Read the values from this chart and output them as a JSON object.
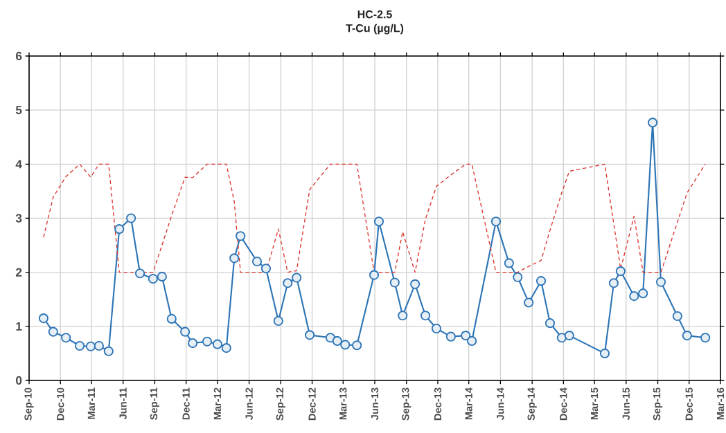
{
  "chart_data": {
    "type": "line",
    "title": "HC-2.5",
    "subtitle": "T-Cu (µg/L)",
    "x": [
      "2010-10-13",
      "2010-11-10",
      "2010-12-17",
      "2011-01-26",
      "2011-02-27",
      "2011-03-23",
      "2011-04-20",
      "2011-05-21",
      "2011-06-24",
      "2011-07-20",
      "2011-08-27",
      "2011-09-22",
      "2011-10-20",
      "2011-11-28",
      "2011-12-20",
      "2012-01-31",
      "2012-03-01",
      "2012-03-27",
      "2012-04-19",
      "2012-05-07",
      "2012-06-24",
      "2012-07-20",
      "2012-08-25",
      "2012-09-21",
      "2012-10-17",
      "2012-11-24",
      "2013-01-23",
      "2013-02-12",
      "2013-03-07",
      "2013-04-10",
      "2013-05-30",
      "2013-06-13",
      "2013-07-29",
      "2013-08-21",
      "2013-09-26",
      "2013-10-26",
      "2013-11-27",
      "2014-01-08",
      "2014-02-20",
      "2014-03-10",
      "2014-05-19",
      "2014-06-26",
      "2014-07-21",
      "2014-08-22",
      "2014-09-27",
      "2014-10-23",
      "2014-11-26",
      "2014-12-18",
      "2015-03-31",
      "2015-04-26",
      "2015-05-16",
      "2015-06-24",
      "2015-07-20",
      "2015-08-17",
      "2015-09-10",
      "2015-10-28",
      "2015-11-25",
      "2016-01-17"
    ],
    "series": [
      {
        "color": "#2e75b6",
        "marker": "circle",
        "line_style": "solid",
        "values": [
          1.15,
          0.9,
          0.79,
          0.64,
          0.63,
          0.64,
          0.54,
          2.8,
          3.0,
          1.98,
          1.88,
          1.92,
          1.14,
          0.9,
          0.69,
          0.72,
          0.67,
          0.6,
          2.26,
          2.67,
          2.2,
          2.07,
          1.1,
          1.8,
          1.9,
          0.84,
          0.79,
          0.73,
          0.66,
          0.65,
          1.95,
          2.94,
          1.81,
          1.2,
          1.78,
          1.2,
          0.96,
          0.81,
          0.83,
          0.73,
          2.94,
          2.17,
          1.91,
          1.44,
          1.84,
          1.06,
          0.79,
          0.83,
          0.5,
          1.8,
          2.02,
          1.56,
          1.61,
          4.77,
          1.82,
          1.19,
          0.83,
          0.79
        ]
      },
      {
        "color": "#d9312b",
        "marker": "none",
        "line_style": "dashed",
        "values": [
          2.65,
          3.39,
          3.77,
          4.0,
          3.76,
          4.0,
          4.0,
          2.0,
          2.0,
          2.0,
          2.0,
          2.5,
          3.05,
          3.76,
          3.75,
          4.0,
          4.0,
          4.0,
          3.3,
          2.0,
          2.0,
          2.0,
          2.8,
          2.0,
          2.03,
          3.53,
          4.0,
          4.0,
          4.0,
          4.0,
          2.0,
          2.0,
          2.0,
          2.75,
          2.0,
          2.98,
          3.59,
          3.8,
          4.0,
          4.0,
          2.0,
          2.0,
          2.0,
          2.11,
          2.22,
          2.78,
          3.47,
          3.87,
          4.0,
          2.9,
          2.06,
          3.04,
          2.0,
          2.0,
          2.0,
          2.93,
          3.47,
          4.0
        ]
      }
    ],
    "xlim": [
      "2010-09-01",
      "2016-03-01"
    ],
    "xticks": [
      {
        "value": "2010-09-01",
        "label": "Sep-10"
      },
      {
        "value": "2010-12-01",
        "label": "Dec-10"
      },
      {
        "value": "2011-03-01",
        "label": "Mar-11"
      },
      {
        "value": "2011-06-01",
        "label": "Jun-11"
      },
      {
        "value": "2011-09-01",
        "label": "Sep-11"
      },
      {
        "value": "2011-12-01",
        "label": "Dec-11"
      },
      {
        "value": "2012-03-01",
        "label": "Mar-12"
      },
      {
        "value": "2012-06-01",
        "label": "Jun-12"
      },
      {
        "value": "2012-09-01",
        "label": "Sep-12"
      },
      {
        "value": "2012-12-01",
        "label": "Dec-12"
      },
      {
        "value": "2013-03-01",
        "label": "Mar-13"
      },
      {
        "value": "2013-06-01",
        "label": "Jun-13"
      },
      {
        "value": "2013-09-01",
        "label": "Sep-13"
      },
      {
        "value": "2013-12-01",
        "label": "Dec-13"
      },
      {
        "value": "2014-03-01",
        "label": "Mar-14"
      },
      {
        "value": "2014-06-01",
        "label": "Jun-14"
      },
      {
        "value": "2014-09-01",
        "label": "Sep-14"
      },
      {
        "value": "2014-12-01",
        "label": "Dec-14"
      },
      {
        "value": "2015-03-01",
        "label": "Mar-15"
      },
      {
        "value": "2015-06-01",
        "label": "Jun-15"
      },
      {
        "value": "2015-09-01",
        "label": "Sep-15"
      },
      {
        "value": "2015-12-01",
        "label": "Dec-15"
      },
      {
        "value": "2016-03-01",
        "label": "Mar-16"
      }
    ],
    "ylim": [
      0,
      6
    ],
    "yticks": [
      0,
      1,
      2,
      3,
      4,
      5,
      6
    ],
    "grid": true
  }
}
